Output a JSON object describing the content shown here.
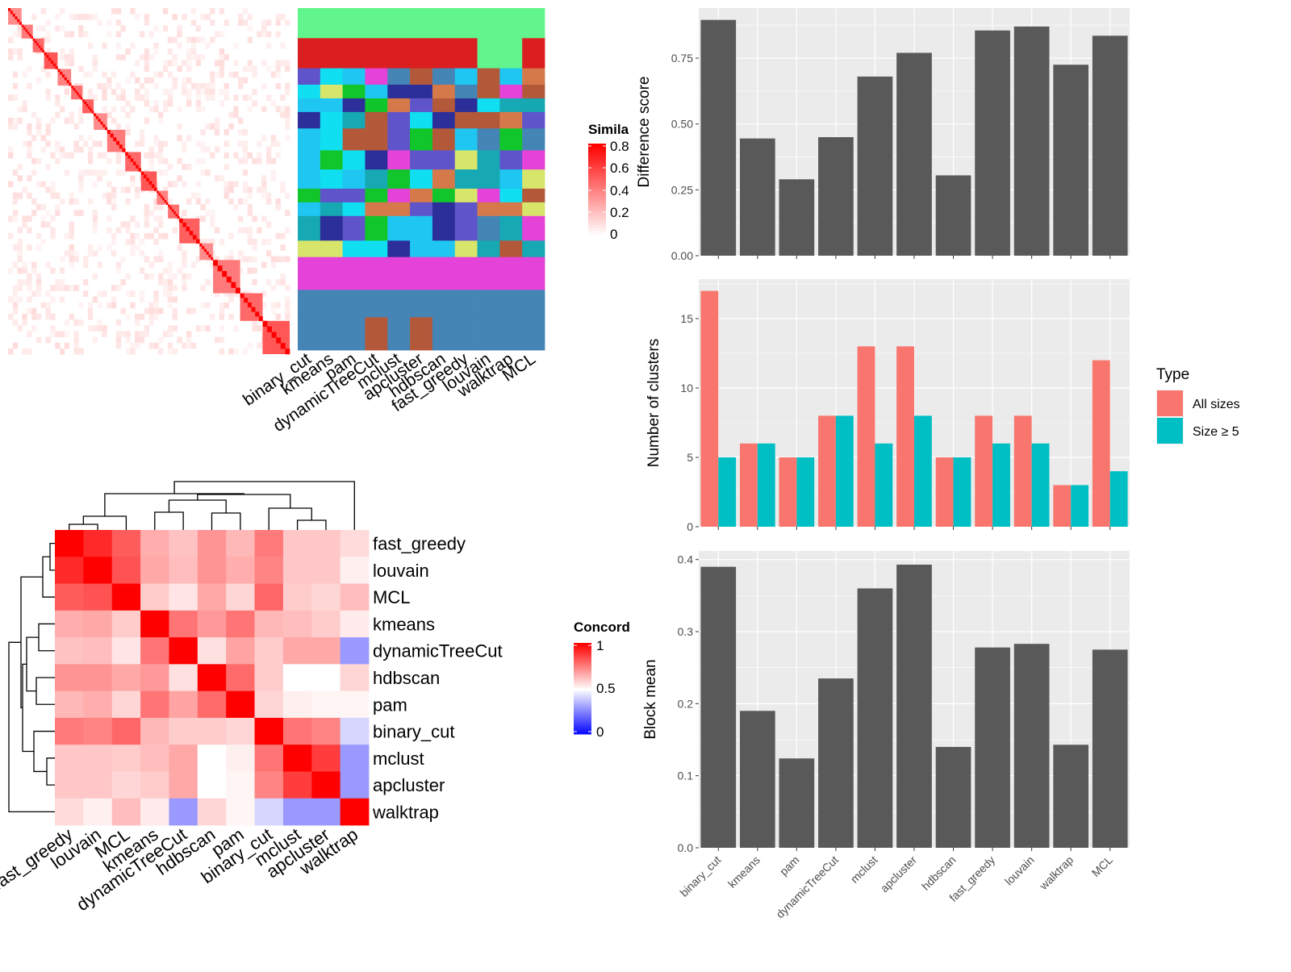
{
  "chart_data": [
    {
      "type": "heatmap",
      "id": "similarity_with_cluster_assignments",
      "legend_title": "Simila",
      "legend_ticks": [
        "0",
        "0.2",
        "0.4",
        "0.6",
        "0.8"
      ],
      "legend_colors": {
        "low": "#ffffff",
        "high": "#ff0000"
      },
      "methods": [
        "binary_cut",
        "kmeans",
        "pam",
        "dynamicTreeCut",
        "mclust",
        "apcluster",
        "hdbscan",
        "fast_greedy",
        "louvain",
        "walktrap",
        "MCL"
      ],
      "diagonal_blocks": [
        6,
        5,
        5,
        6,
        6,
        5,
        5,
        6,
        8,
        7,
        7,
        5,
        5,
        9,
        6,
        12,
        10,
        12
      ],
      "cluster_palette": [
        "#62f58e",
        "#db1e20",
        "#16a8b3",
        "#e442d8",
        "#4585b5",
        "#1fc6f1",
        "#2c2f9a",
        "#11c62b",
        "#d6794a",
        "#5f54c9",
        "#b4583a",
        "#10dff2",
        "#d7e56b"
      ],
      "cluster_band_colors": [
        "#62f58e",
        "#db1e20",
        "#16a8b3",
        "#e442d8",
        "#4585b5"
      ]
    },
    {
      "type": "heatmap",
      "id": "concordance",
      "legend_title": "Concord",
      "legend_ticks": [
        "0",
        "0.5",
        "1"
      ],
      "legend_colors": {
        "low": "#0000ff",
        "mid": "#ffffff",
        "high": "#ff0000"
      },
      "rows": [
        "fast_greedy",
        "louvain",
        "MCL",
        "kmeans",
        "dynamicTreeCut",
        "hdbscan",
        "pam",
        "binary_cut",
        "mclust",
        "apcluster",
        "walktrap"
      ],
      "cols": [
        "fast_greedy",
        "louvain",
        "MCL",
        "kmeans",
        "dynamicTreeCut",
        "hdbscan",
        "pam",
        "binary_cut",
        "mclust",
        "apcluster",
        "walktrap"
      ],
      "values": [
        [
          1.0,
          0.92,
          0.82,
          0.66,
          0.62,
          0.71,
          0.64,
          0.76,
          0.61,
          0.61,
          0.57
        ],
        [
          0.92,
          1.0,
          0.84,
          0.67,
          0.63,
          0.71,
          0.66,
          0.74,
          0.61,
          0.61,
          0.53
        ],
        [
          0.82,
          0.84,
          1.0,
          0.6,
          0.55,
          0.67,
          0.58,
          0.8,
          0.6,
          0.58,
          0.63
        ],
        [
          0.66,
          0.67,
          0.6,
          1.0,
          0.77,
          0.7,
          0.77,
          0.64,
          0.63,
          0.6,
          0.54
        ],
        [
          0.62,
          0.63,
          0.55,
          0.77,
          1.0,
          0.56,
          0.68,
          0.6,
          0.67,
          0.67,
          0.3
        ],
        [
          0.71,
          0.71,
          0.67,
          0.7,
          0.56,
          1.0,
          0.79,
          0.6,
          0.5,
          0.5,
          0.58
        ],
        [
          0.64,
          0.66,
          0.58,
          0.77,
          0.68,
          0.79,
          1.0,
          0.58,
          0.53,
          0.52,
          0.52
        ],
        [
          0.76,
          0.74,
          0.8,
          0.64,
          0.6,
          0.6,
          0.58,
          1.0,
          0.77,
          0.74,
          0.42
        ],
        [
          0.61,
          0.61,
          0.6,
          0.63,
          0.67,
          0.5,
          0.53,
          0.77,
          1.0,
          0.88,
          0.3
        ],
        [
          0.61,
          0.61,
          0.58,
          0.6,
          0.67,
          0.5,
          0.52,
          0.74,
          0.88,
          1.0,
          0.3
        ],
        [
          0.57,
          0.53,
          0.63,
          0.54,
          0.3,
          0.58,
          0.52,
          0.42,
          0.3,
          0.3,
          1.0
        ]
      ]
    },
    {
      "type": "bar",
      "id": "difference_score",
      "ylabel": "Difference score",
      "categories": [
        "binary_cut",
        "kmeans",
        "pam",
        "dynamicTreeCut",
        "mclust",
        "apcluster",
        "hdbscan",
        "fast_greedy",
        "louvain",
        "walktrap",
        "MCL"
      ],
      "values": [
        0.895,
        0.445,
        0.29,
        0.45,
        0.68,
        0.77,
        0.305,
        0.855,
        0.87,
        0.725,
        0.835
      ],
      "ylim": [
        0,
        0.94
      ],
      "yticks": [
        "0.00",
        "0.25",
        "0.50",
        "0.75"
      ],
      "color": "#595959"
    },
    {
      "type": "bar",
      "id": "number_of_clusters",
      "ylabel": "Number of clusters",
      "categories": [
        "binary_cut",
        "kmeans",
        "pam",
        "dynamicTreeCut",
        "mclust",
        "apcluster",
        "hdbscan",
        "fast_greedy",
        "louvain",
        "walktrap",
        "MCL"
      ],
      "series": [
        {
          "name": "All sizes",
          "color": "#f8766d",
          "values": [
            17,
            6,
            5,
            8,
            13,
            13,
            5,
            8,
            8,
            3,
            12
          ]
        },
        {
          "name": "Size ≥ 5",
          "color": "#00bfc4",
          "values": [
            5,
            6,
            5,
            8,
            6,
            8,
            5,
            6,
            6,
            3,
            4
          ]
        }
      ],
      "ylim": [
        0,
        17.85
      ],
      "yticks": [
        "0",
        "5",
        "10",
        "15"
      ],
      "legend_title": "Type",
      "legend_position": "right"
    },
    {
      "type": "bar",
      "id": "block_mean",
      "ylabel": "Block mean",
      "categories": [
        "binary_cut",
        "kmeans",
        "pam",
        "dynamicTreeCut",
        "mclust",
        "apcluster",
        "hdbscan",
        "fast_greedy",
        "louvain",
        "walktrap",
        "MCL"
      ],
      "values": [
        0.39,
        0.19,
        0.124,
        0.235,
        0.36,
        0.393,
        0.14,
        0.278,
        0.283,
        0.143,
        0.275
      ],
      "ylim": [
        0,
        0.412
      ],
      "yticks": [
        "0.0",
        "0.1",
        "0.2",
        "0.3",
        "0.4"
      ],
      "color": "#595959"
    }
  ]
}
